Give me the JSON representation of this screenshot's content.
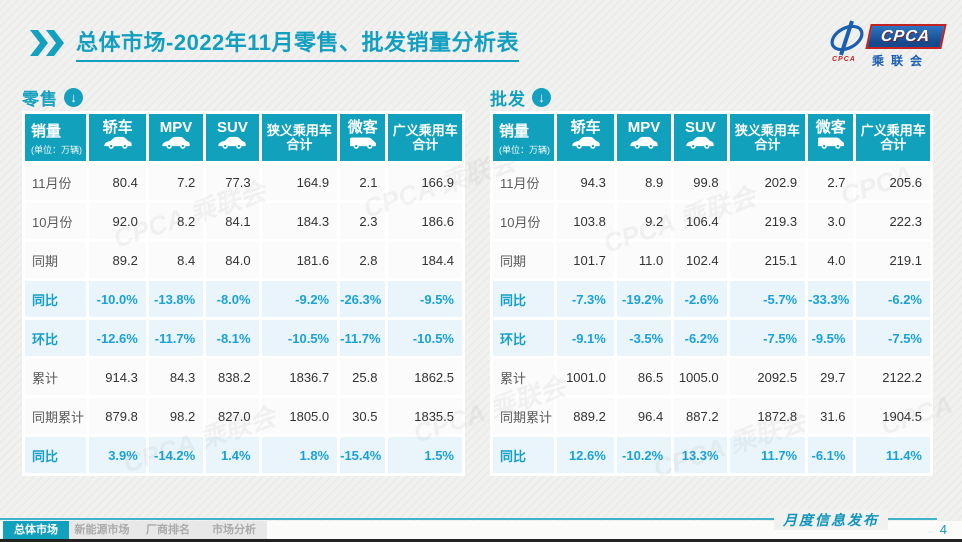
{
  "header": {
    "title_main": "总体市场",
    "title_rest": "-2022年11月零售、批发销量分析表"
  },
  "logo": {
    "acronym": "CPCA",
    "cn_name": "乘联会",
    "swoosh_caption": "CPCA"
  },
  "chart_data": [
    {
      "type": "table",
      "name": "零售",
      "unit_label": "销量",
      "unit_sub": "(单位：万辆)",
      "columns": [
        "轿车",
        "MPV",
        "SUV",
        "狭义乘用车合计",
        "微客",
        "广义乘用车合计"
      ],
      "column_icons": [
        "sedan-icon",
        "sedan-icon",
        "sedan-icon",
        null,
        "van-icon",
        null
      ],
      "rows": [
        {
          "label": "11月份",
          "values": [
            "80.4",
            "7.2",
            "77.3",
            "164.9",
            "2.1",
            "166.9"
          ],
          "highlight": false
        },
        {
          "label": "10月份",
          "values": [
            "92.0",
            "8.2",
            "84.1",
            "184.3",
            "2.3",
            "186.6"
          ],
          "highlight": false
        },
        {
          "label": "同期",
          "values": [
            "89.2",
            "8.4",
            "84.0",
            "181.6",
            "2.8",
            "184.4"
          ],
          "highlight": false
        },
        {
          "label": "同比",
          "values": [
            "-10.0%",
            "-13.8%",
            "-8.0%",
            "-9.2%",
            "-26.3%",
            "-9.5%"
          ],
          "highlight": true
        },
        {
          "label": "环比",
          "values": [
            "-12.6%",
            "-11.7%",
            "-8.1%",
            "-10.5%",
            "-11.7%",
            "-10.5%"
          ],
          "highlight": true
        },
        {
          "label": "累计",
          "values": [
            "914.3",
            "84.3",
            "838.2",
            "1836.7",
            "25.8",
            "1862.5"
          ],
          "highlight": false
        },
        {
          "label": "同期累计",
          "values": [
            "879.8",
            "98.2",
            "827.0",
            "1805.0",
            "30.5",
            "1835.5"
          ],
          "highlight": false
        },
        {
          "label": "同比",
          "values": [
            "3.9%",
            "-14.2%",
            "1.4%",
            "1.8%",
            "-15.4%",
            "1.5%"
          ],
          "highlight": true
        }
      ]
    },
    {
      "type": "table",
      "name": "批发",
      "unit_label": "销量",
      "unit_sub": "(单位：万辆)",
      "columns": [
        "轿车",
        "MPV",
        "SUV",
        "狭义乘用车合计",
        "微客",
        "广义乘用车合计"
      ],
      "column_icons": [
        "sedan-icon",
        "sedan-icon",
        "sedan-icon",
        null,
        "van-icon",
        null
      ],
      "rows": [
        {
          "label": "11月份",
          "values": [
            "94.3",
            "8.9",
            "99.8",
            "202.9",
            "2.7",
            "205.6"
          ],
          "highlight": false
        },
        {
          "label": "10月份",
          "values": [
            "103.8",
            "9.2",
            "106.4",
            "219.3",
            "3.0",
            "222.3"
          ],
          "highlight": false
        },
        {
          "label": "同期",
          "values": [
            "101.7",
            "11.0",
            "102.4",
            "215.1",
            "4.0",
            "219.1"
          ],
          "highlight": false
        },
        {
          "label": "同比",
          "values": [
            "-7.3%",
            "-19.2%",
            "-2.6%",
            "-5.7%",
            "-33.3%",
            "-6.2%"
          ],
          "highlight": true
        },
        {
          "label": "环比",
          "values": [
            "-9.1%",
            "-3.5%",
            "-6.2%",
            "-7.5%",
            "-9.5%",
            "-7.5%"
          ],
          "highlight": true
        },
        {
          "label": "累计",
          "values": [
            "1001.0",
            "86.5",
            "1005.0",
            "2092.5",
            "29.7",
            "2122.2"
          ],
          "highlight": false
        },
        {
          "label": "同期累计",
          "values": [
            "889.2",
            "96.4",
            "887.2",
            "1872.8",
            "31.6",
            "1904.5"
          ],
          "highlight": false
        },
        {
          "label": "同比",
          "values": [
            "12.6%",
            "-10.2%",
            "13.3%",
            "11.7%",
            "-6.1%",
            "11.4%"
          ],
          "highlight": true
        }
      ]
    }
  ],
  "watermark_text": "CPCA 乘联会",
  "footer": {
    "note": "月度信息发布",
    "page_number": "4"
  },
  "tabs": [
    {
      "label": "总体市场",
      "active": true
    },
    {
      "label": "新能源市场",
      "active": false
    },
    {
      "label": "厂商排名",
      "active": false
    },
    {
      "label": "市场分析",
      "active": false
    }
  ],
  "colors": {
    "teal": "#11a1bd",
    "highlight_text": "#1aa2d7",
    "highlight_bg": "#e9f5fa",
    "logo_blue": "#1a5fb0",
    "logo_red": "#c32222"
  }
}
